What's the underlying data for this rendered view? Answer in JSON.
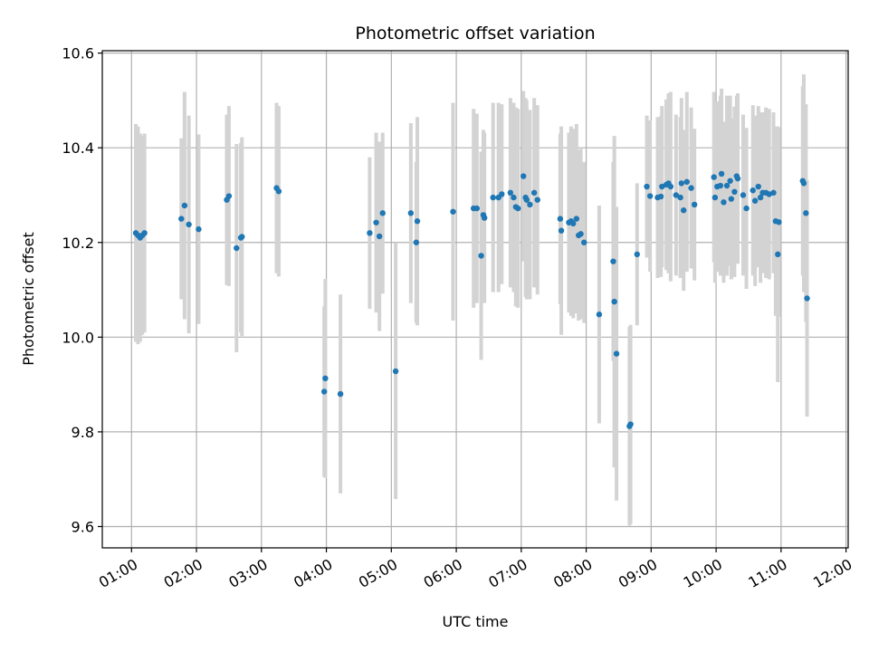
{
  "chart_data": {
    "type": "scatter",
    "title": "Photometric offset variation",
    "xlabel": "UTC time",
    "ylabel": "Photometric offset",
    "x_ticks": [
      "01:00",
      "02:00",
      "03:00",
      "04:00",
      "05:00",
      "06:00",
      "07:00",
      "08:00",
      "09:00",
      "10:00",
      "11:00",
      "12:00"
    ],
    "xlim": [
      "00:33",
      "12:02"
    ],
    "ylim": [
      9.555,
      10.605
    ],
    "y_ticks": [
      "9.6",
      "9.8",
      "10.0",
      "10.2",
      "10.4",
      "10.6"
    ],
    "grid": true,
    "colors": {
      "point": "#1f77b4",
      "errorbar": "#d3d3d3",
      "grid": "#b0b0b0"
    },
    "series": [
      {
        "points": [
          {
            "x": "01:04",
            "y": 10.22,
            "err": 0.23
          },
          {
            "x": "01:06",
            "y": 10.215,
            "err": 0.23
          },
          {
            "x": "01:08",
            "y": 10.21,
            "err": 0.22
          },
          {
            "x": "01:10",
            "y": 10.215,
            "err": 0.21
          },
          {
            "x": "01:12",
            "y": 10.22,
            "err": 0.21
          },
          {
            "x": "01:46",
            "y": 10.25,
            "err": 0.17
          },
          {
            "x": "01:49",
            "y": 10.278,
            "err": 0.24
          },
          {
            "x": "01:53",
            "y": 10.238,
            "err": 0.23
          },
          {
            "x": "02:02",
            "y": 10.228,
            "err": 0.2
          },
          {
            "x": "02:28",
            "y": 10.29,
            "err": 0.18
          },
          {
            "x": "02:30",
            "y": 10.298,
            "err": 0.19
          },
          {
            "x": "02:37",
            "y": 10.188,
            "err": 0.22
          },
          {
            "x": "02:41",
            "y": 10.21,
            "err": 0.2
          },
          {
            "x": "02:42",
            "y": 10.212,
            "err": 0.21
          },
          {
            "x": "03:14",
            "y": 10.315,
            "err": 0.18
          },
          {
            "x": "03:16",
            "y": 10.308,
            "err": 0.18
          },
          {
            "x": "03:58",
            "y": 9.885,
            "err": 0.18
          },
          {
            "x": "03:59",
            "y": 9.913,
            "err": 0.21
          },
          {
            "x": "04:13",
            "y": 9.88,
            "err": 0.21
          },
          {
            "x": "04:40",
            "y": 10.22,
            "err": 0.16
          },
          {
            "x": "04:46",
            "y": 10.242,
            "err": 0.19
          },
          {
            "x": "04:49",
            "y": 10.213,
            "err": 0.2
          },
          {
            "x": "04:52",
            "y": 10.262,
            "err": 0.17
          },
          {
            "x": "05:04",
            "y": 9.928,
            "err": 0.27
          },
          {
            "x": "05:18",
            "y": 10.262,
            "err": 0.19
          },
          {
            "x": "05:23",
            "y": 10.2,
            "err": 0.17
          },
          {
            "x": "05:24",
            "y": 10.245,
            "err": 0.22
          },
          {
            "x": "05:57",
            "y": 10.265,
            "err": 0.23
          },
          {
            "x": "06:16",
            "y": 10.272,
            "err": 0.21
          },
          {
            "x": "06:19",
            "y": 10.272,
            "err": 0.2
          },
          {
            "x": "06:23",
            "y": 10.172,
            "err": 0.22
          },
          {
            "x": "06:25",
            "y": 10.258,
            "err": 0.18
          },
          {
            "x": "06:26",
            "y": 10.252,
            "err": 0.18
          },
          {
            "x": "06:34",
            "y": 10.295,
            "err": 0.2
          },
          {
            "x": "06:39",
            "y": 10.295,
            "err": 0.2
          },
          {
            "x": "06:42",
            "y": 10.302,
            "err": 0.19
          },
          {
            "x": "06:50",
            "y": 10.305,
            "err": 0.2
          },
          {
            "x": "06:53",
            "y": 10.295,
            "err": 0.2
          },
          {
            "x": "06:55",
            "y": 10.275,
            "err": 0.21
          },
          {
            "x": "06:57",
            "y": 10.272,
            "err": 0.21
          },
          {
            "x": "07:02",
            "y": 10.34,
            "err": 0.18
          },
          {
            "x": "07:04",
            "y": 10.295,
            "err": 0.21
          },
          {
            "x": "07:05",
            "y": 10.29,
            "err": 0.21
          },
          {
            "x": "07:08",
            "y": 10.28,
            "err": 0.2
          },
          {
            "x": "07:12",
            "y": 10.305,
            "err": 0.2
          },
          {
            "x": "07:15",
            "y": 10.29,
            "err": 0.2
          },
          {
            "x": "07:36",
            "y": 10.25,
            "err": 0.18
          },
          {
            "x": "07:37",
            "y": 10.225,
            "err": 0.22
          },
          {
            "x": "07:44",
            "y": 10.242,
            "err": 0.19
          },
          {
            "x": "07:46",
            "y": 10.245,
            "err": 0.2
          },
          {
            "x": "07:48",
            "y": 10.24,
            "err": 0.2
          },
          {
            "x": "07:51",
            "y": 10.25,
            "err": 0.2
          },
          {
            "x": "07:53",
            "y": 10.215,
            "err": 0.18
          },
          {
            "x": "07:55",
            "y": 10.218,
            "err": 0.18
          },
          {
            "x": "07:58",
            "y": 10.2,
            "err": 0.17
          },
          {
            "x": "08:12",
            "y": 10.048,
            "err": 0.23
          },
          {
            "x": "08:25",
            "y": 10.16,
            "err": 0.21
          },
          {
            "x": "08:26",
            "y": 10.075,
            "err": 0.35
          },
          {
            "x": "08:28",
            "y": 9.965,
            "err": 0.31
          },
          {
            "x": "08:40",
            "y": 9.812,
            "err": 0.21
          },
          {
            "x": "08:41",
            "y": 9.816,
            "err": 0.21
          },
          {
            "x": "08:47",
            "y": 10.175,
            "err": 0.15
          },
          {
            "x": "08:56",
            "y": 10.318,
            "err": 0.15
          },
          {
            "x": "08:59",
            "y": 10.298,
            "err": 0.16
          },
          {
            "x": "09:06",
            "y": 10.295,
            "err": 0.17
          },
          {
            "x": "09:09",
            "y": 10.297,
            "err": 0.17
          },
          {
            "x": "09:10",
            "y": 10.318,
            "err": 0.17
          },
          {
            "x": "09:14",
            "y": 10.322,
            "err": 0.18
          },
          {
            "x": "09:16",
            "y": 10.325,
            "err": 0.19
          },
          {
            "x": "09:18",
            "y": 10.318,
            "err": 0.2
          },
          {
            "x": "09:23",
            "y": 10.3,
            "err": 0.17
          },
          {
            "x": "09:27",
            "y": 10.295,
            "err": 0.17
          },
          {
            "x": "09:28",
            "y": 10.325,
            "err": 0.18
          },
          {
            "x": "09:30",
            "y": 10.268,
            "err": 0.17
          },
          {
            "x": "09:33",
            "y": 10.328,
            "err": 0.19
          },
          {
            "x": "09:37",
            "y": 10.315,
            "err": 0.17
          },
          {
            "x": "09:40",
            "y": 10.28,
            "err": 0.16
          },
          {
            "x": "09:58",
            "y": 10.338,
            "err": 0.18
          },
          {
            "x": "09:59",
            "y": 10.295,
            "err": 0.18
          },
          {
            "x": "10:01",
            "y": 10.318,
            "err": 0.18
          },
          {
            "x": "10:04",
            "y": 10.32,
            "err": 0.19
          },
          {
            "x": "10:05",
            "y": 10.345,
            "err": 0.18
          },
          {
            "x": "10:07",
            "y": 10.285,
            "err": 0.17
          },
          {
            "x": "10:10",
            "y": 10.32,
            "err": 0.19
          },
          {
            "x": "10:13",
            "y": 10.33,
            "err": 0.18
          },
          {
            "x": "10:14",
            "y": 10.292,
            "err": 0.17
          },
          {
            "x": "10:17",
            "y": 10.307,
            "err": 0.18
          },
          {
            "x": "10:19",
            "y": 10.34,
            "err": 0.17
          },
          {
            "x": "10:20",
            "y": 10.335,
            "err": 0.18
          },
          {
            "x": "10:25",
            "y": 10.3,
            "err": 0.17
          },
          {
            "x": "10:28",
            "y": 10.272,
            "err": 0.17
          },
          {
            "x": "10:34",
            "y": 10.31,
            "err": 0.18
          },
          {
            "x": "10:36",
            "y": 10.288,
            "err": 0.18
          },
          {
            "x": "10:39",
            "y": 10.318,
            "err": 0.17
          },
          {
            "x": "10:41",
            "y": 10.295,
            "err": 0.18
          },
          {
            "x": "10:43",
            "y": 10.305,
            "err": 0.17
          },
          {
            "x": "10:46",
            "y": 10.305,
            "err": 0.18
          },
          {
            "x": "10:49",
            "y": 10.302,
            "err": 0.18
          },
          {
            "x": "10:53",
            "y": 10.305,
            "err": 0.17
          },
          {
            "x": "10:55",
            "y": 10.245,
            "err": 0.2
          },
          {
            "x": "10:57",
            "y": 10.175,
            "err": 0.27
          },
          {
            "x": "10:58",
            "y": 10.243,
            "err": 0.2
          },
          {
            "x": "11:20",
            "y": 10.33,
            "err": 0.2
          },
          {
            "x": "11:21",
            "y": 10.325,
            "err": 0.23
          },
          {
            "x": "11:23",
            "y": 10.262,
            "err": 0.23
          },
          {
            "x": "11:24",
            "y": 10.082,
            "err": 0.25
          }
        ]
      }
    ]
  }
}
